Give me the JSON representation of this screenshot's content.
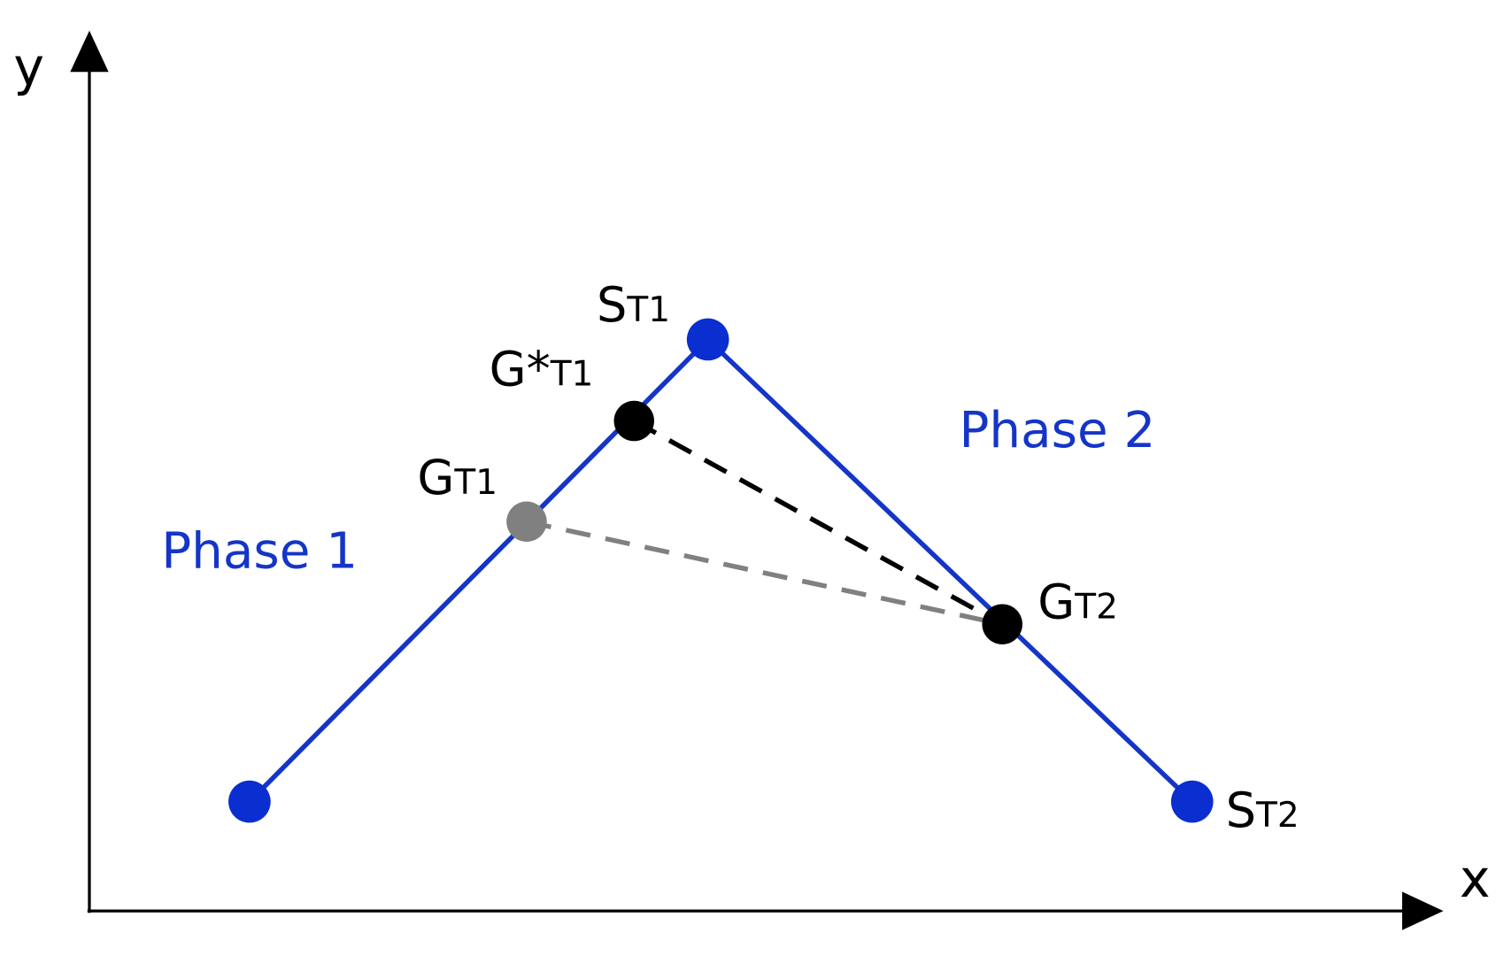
{
  "axes": {
    "x_label": "x",
    "y_label": "y"
  },
  "phases": [
    "Phase 1",
    "Phase 2"
  ],
  "points": [
    {
      "label": "S",
      "sub": "T1"
    },
    {
      "label": "G*",
      "sub": "T1"
    },
    {
      "label": "G",
      "sub": "T1"
    },
    {
      "label": "G",
      "sub": "T2"
    },
    {
      "label": "S",
      "sub": "T2"
    }
  ]
}
